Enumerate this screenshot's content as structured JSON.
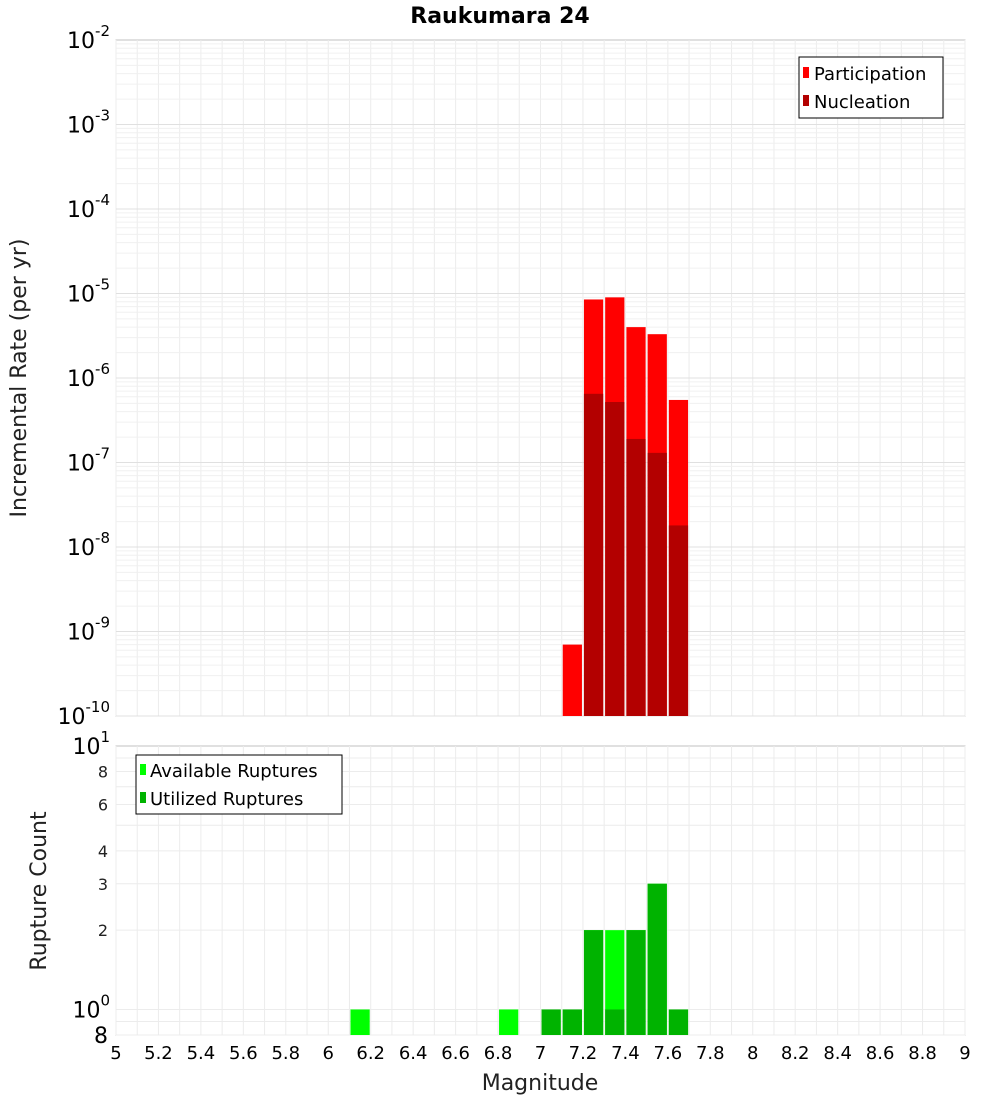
{
  "chart_data": [
    {
      "type": "bar",
      "title": "Raukumara 24",
      "xlabel": "",
      "ylabel": "Incremental Rate (per yr)",
      "yscale": "log",
      "xlim": [
        5,
        9
      ],
      "ylim": [
        1e-10,
        0.01
      ],
      "y_tick_bases": [
        "10",
        "10",
        "10",
        "10",
        "10",
        "10",
        "10",
        "10",
        "10"
      ],
      "y_tick_exponents": [
        "-10",
        "-9",
        "-8",
        "-7",
        "-6",
        "-5",
        "-4",
        "-3",
        "-2"
      ],
      "y_tick_values": [
        1e-10,
        1e-09,
        1e-08,
        1e-07,
        1e-06,
        1e-05,
        0.0001,
        0.001,
        0.01
      ],
      "bin_width": 0.1,
      "legend": {
        "position": "top-right",
        "entries": [
          "Participation",
          "Nucleation"
        ]
      },
      "series": [
        {
          "name": "Participation",
          "color": "#ff0000",
          "x": [
            7.15,
            7.25,
            7.35,
            7.45,
            7.55,
            7.65
          ],
          "values": [
            7e-10,
            8.5e-06,
            9e-06,
            4e-06,
            3.3e-06,
            5.5e-07
          ]
        },
        {
          "name": "Nucleation",
          "color": "#b30000",
          "x": [
            7.25,
            7.35,
            7.45,
            7.55,
            7.65
          ],
          "values": [
            6.5e-07,
            5.2e-07,
            1.9e-07,
            1.3e-07,
            1.8e-08
          ]
        }
      ]
    },
    {
      "type": "bar",
      "title": "",
      "xlabel": "Magnitude",
      "ylabel": "Rupture Count",
      "yscale": "log",
      "xlim": [
        5,
        9
      ],
      "ylim": [
        0.8,
        10
      ],
      "x_ticks": [
        "5",
        "5.2",
        "5.4",
        "5.6",
        "5.8",
        "6",
        "6.2",
        "6.4",
        "6.6",
        "6.8",
        "7",
        "7.2",
        "7.4",
        "7.6",
        "7.8",
        "8",
        "8.2",
        "8.4",
        "8.6",
        "8.8",
        "9"
      ],
      "y_tick_values": [
        0.8,
        1,
        2,
        3,
        4,
        6,
        8,
        10
      ],
      "y_ticks": [
        {
          "value": 0.8,
          "label": "8"
        },
        {
          "value": 1,
          "base": "10",
          "exp": "0"
        },
        {
          "value": 2,
          "label": "2"
        },
        {
          "value": 3,
          "label": "3"
        },
        {
          "value": 4,
          "label": "4"
        },
        {
          "value": 6,
          "label": "6"
        },
        {
          "value": 8,
          "label": "8"
        },
        {
          "value": 10,
          "base": "10",
          "exp": "1"
        }
      ],
      "bin_width": 0.1,
      "legend": {
        "position": "top-left",
        "entries": [
          "Available Ruptures",
          "Utilized Ruptures"
        ]
      },
      "series": [
        {
          "name": "Available Ruptures",
          "color": "#00ff00",
          "x": [
            6.15,
            6.85,
            7.05,
            7.15,
            7.25,
            7.35,
            7.45,
            7.55,
            7.65
          ],
          "values": [
            1,
            1,
            1,
            1,
            2,
            2,
            2,
            3,
            1
          ]
        },
        {
          "name": "Utilized Ruptures",
          "color": "#00b300",
          "x": [
            7.05,
            7.15,
            7.25,
            7.35,
            7.45,
            7.55,
            7.65
          ],
          "values": [
            1,
            1,
            2,
            1,
            2,
            3,
            1
          ]
        }
      ]
    }
  ]
}
